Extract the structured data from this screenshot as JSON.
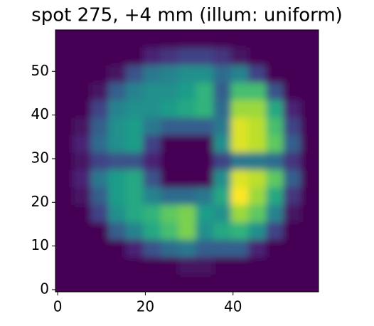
{
  "chart_data": {
    "type": "heatmap",
    "title": "spot 275, +4 mm (illum: uniform)",
    "colormap": "viridis",
    "x": [
      1.5,
      5.5,
      9.5,
      13.5,
      17.5,
      21.5,
      25.5,
      29.5,
      33.5,
      37.5,
      41.5,
      45.5,
      49.5,
      53.5,
      57.5
    ],
    "y": [
      1.5,
      5.5,
      9.5,
      13.5,
      17.5,
      21.5,
      25.5,
      29.5,
      33.5,
      37.5,
      41.5,
      45.5,
      49.5,
      53.5,
      57.5
    ],
    "z": [
      [
        0,
        0,
        0,
        0,
        0,
        0,
        0,
        0,
        0,
        0,
        0,
        0,
        0,
        0,
        0
      ],
      [
        0,
        0,
        0,
        0,
        0,
        0,
        0,
        0.05,
        0.05,
        0,
        0,
        0,
        0,
        0,
        0
      ],
      [
        0,
        0,
        0,
        0,
        0.1,
        0.25,
        0.35,
        0.4,
        0.3,
        0.3,
        0.3,
        0.1,
        0,
        0,
        0
      ],
      [
        0,
        0,
        0,
        0.3,
        0.45,
        0.6,
        0.7,
        0.8,
        0.5,
        0.6,
        0.65,
        0.5,
        0.2,
        0,
        0
      ],
      [
        0,
        0,
        0.2,
        0.5,
        0.6,
        0.65,
        0.75,
        0.8,
        0.55,
        0.5,
        0.85,
        0.75,
        0.45,
        0.05,
        0
      ],
      [
        0,
        0.05,
        0.3,
        0.55,
        0.6,
        0.45,
        0.35,
        0.35,
        0.4,
        0.6,
        1,
        0.85,
        0.6,
        0.15,
        0
      ],
      [
        0,
        0.1,
        0.4,
        0.55,
        0.6,
        0.25,
        0,
        0,
        0,
        0.5,
        0.95,
        0.9,
        0.75,
        0.3,
        0
      ],
      [
        0,
        0.05,
        0.2,
        0.25,
        0.25,
        0.1,
        0,
        0,
        0,
        0.2,
        0.4,
        0.4,
        0.35,
        0.15,
        0
      ],
      [
        0,
        0.1,
        0.35,
        0.5,
        0.55,
        0.2,
        0,
        0,
        0,
        0.5,
        0.95,
        0.9,
        0.75,
        0.3,
        0
      ],
      [
        0,
        0.05,
        0.3,
        0.5,
        0.55,
        0.4,
        0.3,
        0.3,
        0.3,
        0.4,
        0.95,
        0.9,
        0.7,
        0.2,
        0
      ],
      [
        0,
        0,
        0.2,
        0.45,
        0.5,
        0.5,
        0.55,
        0.6,
        0.65,
        0.35,
        0.85,
        0.85,
        0.6,
        0.1,
        0
      ],
      [
        0,
        0,
        0.05,
        0.3,
        0.45,
        0.5,
        0.5,
        0.55,
        0.65,
        0.3,
        0.7,
        0.7,
        0.25,
        0,
        0
      ],
      [
        0,
        0,
        0,
        0.05,
        0.25,
        0.4,
        0.45,
        0.5,
        0.5,
        0.35,
        0.45,
        0.2,
        0,
        0,
        0
      ],
      [
        0,
        0,
        0,
        0,
        0,
        0.1,
        0.15,
        0.2,
        0.2,
        0.15,
        0.05,
        0,
        0,
        0,
        0
      ],
      [
        0,
        0,
        0,
        0,
        0,
        0,
        0,
        0,
        0,
        0,
        0,
        0,
        0,
        0,
        0
      ]
    ],
    "xlim": [
      -0.5,
      59.5
    ],
    "ylim": [
      -0.5,
      59.5
    ],
    "xticks": [
      0,
      20,
      40
    ],
    "yticks": [
      0,
      10,
      20,
      30,
      40,
      50
    ]
  }
}
